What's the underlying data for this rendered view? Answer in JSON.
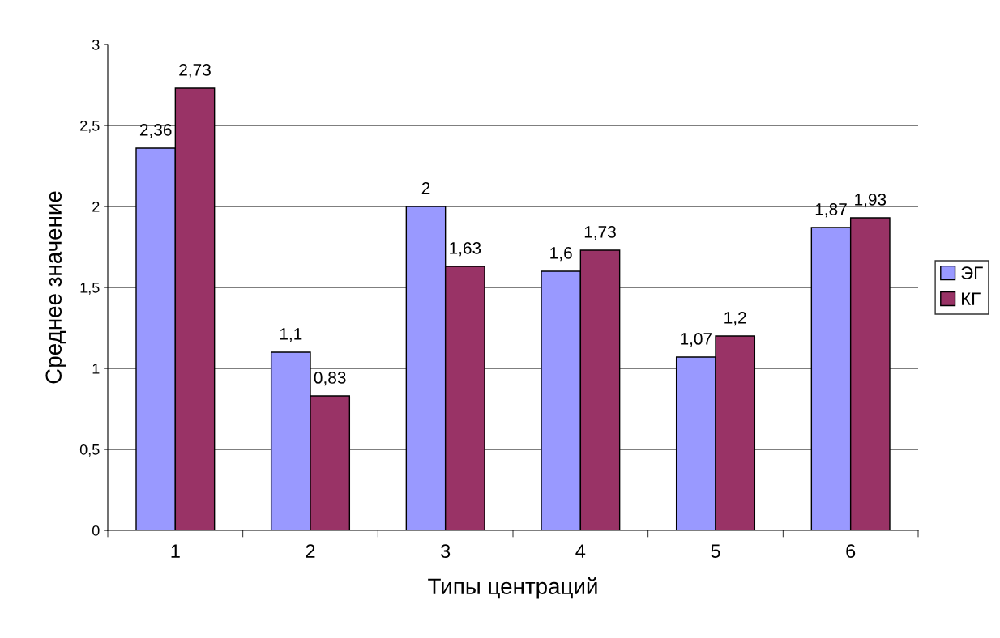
{
  "chart_data": {
    "type": "bar",
    "xlabel": "Типы центраций",
    "ylabel": "Среднее значение",
    "categories": [
      "1",
      "2",
      "3",
      "4",
      "5",
      "6"
    ],
    "series": [
      {
        "name": "ЭГ",
        "color": "#9999ff",
        "values": [
          2.36,
          1.1,
          2,
          1.6,
          1.07,
          1.87
        ],
        "value_labels": [
          "2,36",
          "1,1",
          "2",
          "1,6",
          "1,07",
          "1,87"
        ]
      },
      {
        "name": "КГ",
        "color": "#993366",
        "values": [
          2.73,
          0.83,
          1.63,
          1.73,
          1.2,
          1.93
        ],
        "value_labels": [
          "2,73",
          "0,83",
          "1,63",
          "1,73",
          "1,2",
          "1,93"
        ]
      }
    ],
    "ylim": [
      0,
      3
    ],
    "yticks": [
      0,
      {
        "value": 0.5,
        "label": "0,5"
      },
      1,
      {
        "value": 1.5,
        "label": "1,5"
      },
      2,
      {
        "value": 2.5,
        "label": "2,5"
      },
      3
    ],
    "grid": "y",
    "legend": "right"
  }
}
